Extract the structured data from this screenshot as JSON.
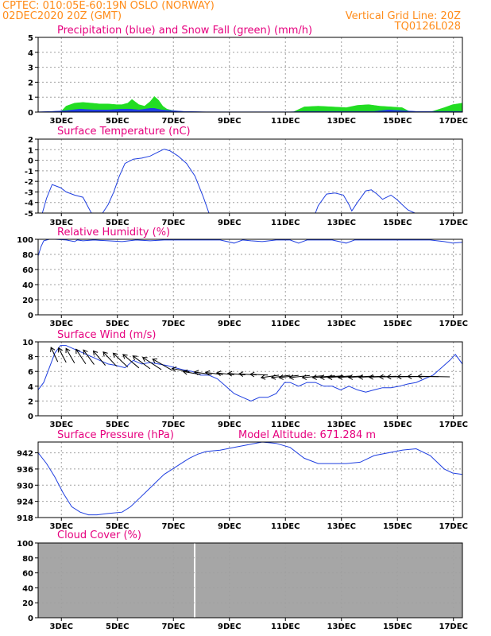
{
  "header": {
    "left1": "CPTEC:   010:05E-60:19N   OSLO (NORWAY)",
    "left2": "02DEC2020 20Z (GMT)",
    "right1": "Vertical Grid Line: 20Z",
    "right2": "TQ0126L028"
  },
  "x_labels": [
    "3DEC",
    "5DEC",
    "7DEC",
    "9DEC",
    "11DEC",
    "13DEC",
    "15DEC",
    "17DEC"
  ],
  "colors": {
    "header": "#ff8c1a",
    "panel_title": "#e6007e",
    "line": "#1f3fe0",
    "snow": "#22dd22",
    "cloud": "#a6a6a6",
    "arrow": "#000000"
  },
  "chart_data": [
    {
      "type": "area",
      "title": "Precipitation (blue) and Snow Fall (green) (mm/h)",
      "ylim": [
        0,
        5
      ],
      "yticks": [
        0,
        1,
        2,
        3,
        4,
        5
      ],
      "x_range_days": [
        2,
        17.15
      ],
      "series": [
        {
          "name": "Snow Fall (green)",
          "color": "#22dd22",
          "x": [
            2.8,
            3.0,
            3.3,
            3.6,
            3.9,
            4.2,
            4.5,
            4.8,
            5.0,
            5.2,
            5.35,
            5.6,
            5.8,
            6.0,
            6.15,
            6.3,
            6.45,
            6.6,
            6.8,
            7.0,
            7.2,
            11.1,
            11.5,
            12.0,
            12.5,
            13.0,
            13.4,
            13.8,
            14.2,
            14.6,
            15.0,
            15.3,
            16.0,
            16.5,
            16.8,
            17.15
          ],
          "values": [
            0,
            0.4,
            0.6,
            0.65,
            0.6,
            0.55,
            0.55,
            0.5,
            0.5,
            0.6,
            0.85,
            0.5,
            0.4,
            0.7,
            1.05,
            0.8,
            0.4,
            0.2,
            0.1,
            0.05,
            0,
            0,
            0.35,
            0.4,
            0.35,
            0.3,
            0.45,
            0.5,
            0.4,
            0.35,
            0.3,
            0,
            0,
            0.3,
            0.5,
            0.6
          ]
        },
        {
          "name": "Precipitation (blue)",
          "color": "#1f3fe0",
          "x": [
            2,
            2.5,
            3,
            3.5,
            4,
            4.5,
            5,
            5.3,
            5.6,
            6,
            6.15,
            6.4,
            6.8,
            7.2,
            8,
            9,
            10,
            11,
            11.5,
            12,
            13,
            14,
            14.5,
            15,
            15.5,
            16,
            16.5,
            17.15
          ],
          "values": [
            0.02,
            0.05,
            0.1,
            0.2,
            0.15,
            0.15,
            0.2,
            0.2,
            0.15,
            0.25,
            0.25,
            0.15,
            0.1,
            0.05,
            0.02,
            0.02,
            0.02,
            0.02,
            0.05,
            0.05,
            0.05,
            0.05,
            0.15,
            0.1,
            0.05,
            0.05,
            0.05,
            0.05
          ]
        }
      ]
    },
    {
      "type": "line",
      "title": "Surface Temperature (nC)",
      "ylim": [
        -5,
        2
      ],
      "yticks": [
        -5,
        -4,
        -3,
        -2,
        -1,
        0,
        1,
        2
      ],
      "x_range_days": [
        2,
        17.15
      ],
      "series": [
        {
          "name": "",
          "color": "#1f3fe0",
          "x": [
            2.15,
            2.3,
            2.5,
            2.8,
            3.0,
            3.3,
            3.6,
            3.9,
            4.1,
            4.3,
            4.5,
            4.7,
            4.9,
            5.1,
            5.4,
            5.7,
            6.0,
            6.3,
            6.5,
            6.7,
            7.0,
            7.3,
            7.6,
            7.9,
            8.1,
            11.9,
            12.0,
            12.3,
            12.6,
            12.9,
            13.1,
            13.2,
            13.4,
            13.7,
            13.9,
            14.1,
            14.3,
            14.6,
            14.8,
            15.0,
            15.2,
            15.45
          ],
          "values": [
            -5,
            -3.6,
            -2.3,
            -2.6,
            -3.0,
            -3.3,
            -3.5,
            -5,
            -5,
            -5,
            -4.2,
            -3.0,
            -1.5,
            -0.3,
            0.1,
            0.2,
            0.4,
            0.8,
            1.05,
            0.9,
            0.4,
            -0.3,
            -1.5,
            -3.5,
            -5,
            -5,
            -4.3,
            -3.2,
            -3.1,
            -3.3,
            -4.2,
            -4.8,
            -4.0,
            -2.9,
            -2.8,
            -3.2,
            -3.7,
            -3.3,
            -3.7,
            -4.2,
            -4.7,
            -5
          ]
        }
      ]
    },
    {
      "type": "line",
      "title": "Relative Humidity (%)",
      "ylim": [
        0,
        100
      ],
      "yticks": [
        0,
        20,
        40,
        60,
        80,
        100
      ],
      "x_range_days": [
        2,
        17.15
      ],
      "series": [
        {
          "name": "",
          "color": "#1f3fe0",
          "x": [
            2,
            2.1,
            2.2,
            2.4,
            2.6,
            3.0,
            3.3,
            3.4,
            3.6,
            4.0,
            4.5,
            5.0,
            5.5,
            6.0,
            6.5,
            7.0,
            7.5,
            8.0,
            8.5,
            9.0,
            9.3,
            9.6,
            10.0,
            10.5,
            11.0,
            11.3,
            11.6,
            12.0,
            12.5,
            13.0,
            13.3,
            13.6,
            14.0,
            14.5,
            15.0,
            15.5,
            16.0,
            16.5,
            16.8,
            17.15
          ],
          "values": [
            78,
            90,
            98,
            100,
            100,
            99,
            97,
            99,
            98,
            99,
            98,
            97,
            99,
            98,
            99,
            99,
            99,
            99,
            99,
            95,
            99,
            98,
            97,
            99,
            99,
            95,
            99,
            99,
            99,
            95,
            99,
            99,
            99,
            99,
            99,
            99,
            99,
            97,
            95,
            96
          ]
        }
      ]
    },
    {
      "type": "line",
      "title": "Surface Wind (m/s)",
      "ylim": [
        0,
        10
      ],
      "yticks": [
        0,
        2,
        4,
        6,
        8,
        10
      ],
      "x_range_days": [
        2,
        17.15
      ],
      "series": [
        {
          "name": "",
          "color": "#1f3fe0",
          "x": [
            2,
            2.2,
            2.4,
            2.6,
            2.8,
            3.0,
            3.3,
            3.6,
            3.9,
            4.2,
            4.5,
            4.8,
            5.1,
            5.4,
            5.7,
            6.0,
            6.3,
            6.6,
            6.9,
            7.2,
            7.5,
            7.8,
            8.1,
            8.4,
            8.7,
            9.0,
            9.3,
            9.6,
            9.9,
            10.2,
            10.5,
            10.8,
            11.0,
            11.3,
            11.6,
            11.9,
            12.2,
            12.5,
            12.8,
            13.1,
            13.4,
            13.7,
            14.0,
            14.3,
            14.6,
            14.9,
            15.2,
            15.5,
            15.8,
            16.1,
            16.4,
            16.7,
            16.9,
            17.15
          ],
          "values": [
            3.5,
            4.5,
            6.5,
            8.5,
            9.5,
            9.5,
            9.0,
            8.5,
            8.0,
            7.5,
            7.0,
            6.8,
            6.5,
            7.5,
            7.0,
            7.2,
            7.0,
            6.8,
            6.5,
            6.2,
            6.0,
            5.5,
            5.5,
            5.0,
            4.0,
            3.0,
            2.5,
            2.0,
            2.5,
            2.5,
            3.0,
            4.5,
            4.5,
            4.0,
            4.5,
            4.5,
            4.0,
            4.0,
            3.5,
            4.0,
            3.5,
            3.2,
            3.5,
            3.8,
            3.8,
            4.0,
            4.3,
            4.5,
            5.0,
            5.5,
            6.5,
            7.5,
            8.3,
            7.0
          ]
        }
      ],
      "arrow_days": [
        2.7,
        3.0,
        3.3,
        3.7,
        4.0,
        4.4,
        4.8,
        5.2,
        5.6,
        6.0,
        6.4,
        6.8,
        7.4,
        7.8,
        8.2,
        8.6,
        9.0,
        9.4,
        9.8,
        10.2,
        10.6,
        11.0,
        11.3,
        11.7,
        12.2,
        12.6,
        12.9,
        13.2,
        13.6,
        14.0,
        14.4,
        14.8,
        15.2,
        15.5,
        15.9,
        16.3,
        16.7
      ]
    },
    {
      "type": "line",
      "title": "Surface Pressure (hPa)",
      "annotation": "Model Altitude: 671.284 m",
      "ylim": [
        918,
        946
      ],
      "yticks": [
        918,
        924,
        930,
        936,
        942
      ],
      "x_range_days": [
        2,
        17.15
      ],
      "series": [
        {
          "name": "",
          "color": "#1f3fe0",
          "x": [
            2,
            2.3,
            2.6,
            2.9,
            3.2,
            3.5,
            3.8,
            4.1,
            4.5,
            5.0,
            5.3,
            5.6,
            5.9,
            6.2,
            6.5,
            6.8,
            7.1,
            7.4,
            7.7,
            8.0,
            8.5,
            9.0,
            9.5,
            10.0,
            10.5,
            11.0,
            11.5,
            12.0,
            12.5,
            13.0,
            13.5,
            14.0,
            14.5,
            15.0,
            15.5,
            16.0,
            16.5,
            16.8,
            17.15
          ],
          "values": [
            942,
            938,
            933,
            927,
            922,
            920,
            919,
            919,
            919.5,
            920,
            922,
            925,
            928,
            931,
            934,
            936,
            938,
            940,
            941.5,
            942.5,
            943,
            944,
            945,
            946,
            945.5,
            944,
            940,
            938,
            938,
            938,
            938.5,
            941,
            942,
            943,
            943.5,
            941,
            936,
            934.5,
            934
          ]
        }
      ]
    },
    {
      "type": "area",
      "title": "Cloud Cover (%)",
      "ylim": [
        0,
        100
      ],
      "yticks": [
        0,
        20,
        40,
        60,
        80,
        100
      ],
      "x_range_days": [
        2,
        17.15
      ],
      "series": [
        {
          "name": "",
          "color": "#a6a6a6",
          "x": [
            2,
            17.15
          ],
          "values": [
            100,
            100
          ]
        }
      ]
    }
  ]
}
